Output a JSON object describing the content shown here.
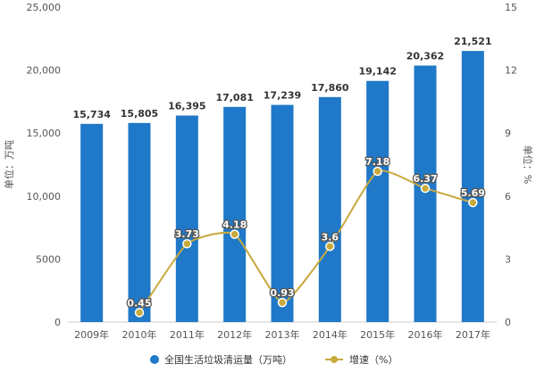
{
  "chart_data": {
    "type": "bar+line",
    "categories": [
      "2009年",
      "2010年",
      "2011年",
      "2012年",
      "2013年",
      "2014年",
      "2015年",
      "2016年",
      "2017年"
    ],
    "series": [
      {
        "name": "全国生活垃圾清运量（万吨）",
        "type": "bar",
        "axis": "left",
        "values": [
          15734,
          15805,
          16395,
          17081,
          17239,
          17860,
          19142,
          20362,
          21521
        ],
        "labels": [
          "15,734",
          "15,805",
          "16,395",
          "17,081",
          "17,239",
          "17,860",
          "19,142",
          "20,362",
          "21,521"
        ],
        "color": "#1f78c8"
      },
      {
        "name": "增速（%）",
        "type": "line",
        "axis": "right",
        "values": [
          null,
          0.45,
          3.73,
          4.18,
          0.93,
          3.6,
          7.18,
          6.37,
          5.69
        ],
        "labels": [
          "",
          "0.45",
          "3.73",
          "4.18",
          "0.93",
          "3.6",
          "7.18",
          "6.37",
          "5.69"
        ],
        "color": "#c8a93e"
      }
    ],
    "left_axis": {
      "label": "单位：万吨",
      "ylim": [
        0,
        25000
      ],
      "ticks": [
        0,
        5000,
        10000,
        15000,
        20000,
        25000
      ],
      "tick_labels": [
        "0",
        "5000",
        "10,000",
        "15,000",
        "20,000",
        "25,000"
      ]
    },
    "right_axis": {
      "label": "单位：%",
      "ylim": [
        0,
        15
      ],
      "ticks": [
        0,
        3,
        6,
        9,
        12,
        15
      ],
      "tick_labels": [
        "0",
        "3",
        "6",
        "9",
        "12",
        "15"
      ]
    },
    "grid": false,
    "legend": "bottom"
  }
}
